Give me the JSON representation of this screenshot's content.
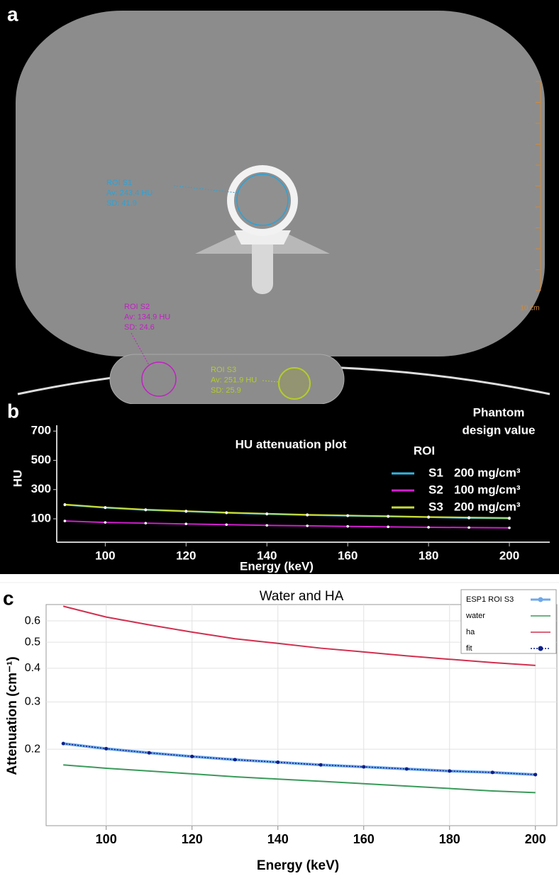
{
  "panel_labels": [
    "a",
    "b",
    "c"
  ],
  "ct_image": {
    "rois": [
      {
        "name": "ROI S1",
        "mean": "Av: 243.4 HU",
        "sd": "SD: 41.9",
        "color": "#2aa3d8"
      },
      {
        "name": "ROI S2",
        "mean": "Av: 134.9 HU",
        "sd": "SD: 24.6",
        "color": "#c21fc4"
      },
      {
        "name": "ROI S3",
        "mean": "Av: 251.9 HU",
        "sd": "SD: 25.9",
        "color": "#b5cc2a"
      }
    ],
    "scale_label": "10 cm"
  },
  "chart_data": [
    {
      "type": "line",
      "title": "HU attenuation plot",
      "x_label": "Energy (keV)",
      "y_label": "HU",
      "x": [
        90,
        100,
        110,
        120,
        130,
        140,
        150,
        160,
        170,
        180,
        190,
        200
      ],
      "xlim": [
        88,
        210
      ],
      "xticks": [
        100,
        120,
        140,
        160,
        180,
        200
      ],
      "ylim": [
        -60,
        740
      ],
      "yticks": [
        100,
        300,
        500,
        700
      ],
      "grid": false,
      "legend_title": "ROI",
      "design_value_title": [
        "Phantom",
        "design value"
      ],
      "series": [
        {
          "name": "S1",
          "color": "#33b5e0",
          "design_value": "200 mg/cm³",
          "marker": true,
          "values": [
            195,
            175,
            160,
            150,
            140,
            132,
            125,
            120,
            115,
            110,
            105,
            102
          ]
        },
        {
          "name": "S2",
          "color": "#d21fd0",
          "design_value": "100 mg/cm³",
          "marker": true,
          "values": [
            85,
            75,
            70,
            65,
            60,
            55,
            52,
            48,
            45,
            42,
            40,
            38
          ]
        },
        {
          "name": "S3",
          "color": "#c6dc3a",
          "design_value": "200 mg/cm³",
          "marker": true,
          "values": [
            198,
            178,
            163,
            153,
            143,
            135,
            128,
            123,
            118,
            113,
            109,
            106
          ]
        }
      ]
    },
    {
      "type": "line",
      "title": "Water and HA",
      "x_label": "Energy (keV)",
      "y_label": "Attenuation (cm⁻¹)",
      "log_y": true,
      "x": [
        90,
        100,
        110,
        120,
        130,
        140,
        150,
        160,
        170,
        180,
        190,
        200
      ],
      "xlim": [
        86,
        205
      ],
      "xticks": [
        100,
        120,
        140,
        160,
        180,
        200
      ],
      "ylim": [
        0.104,
        0.69
      ],
      "yticks": [
        0.2,
        0.3,
        0.4,
        0.5,
        0.6
      ],
      "grid": true,
      "series": [
        {
          "name": "ESP1 ROI S3",
          "color": "#6fa8e8",
          "marker": false,
          "values": [
            0.21,
            0.201,
            0.194,
            0.188,
            0.183,
            0.179,
            0.175,
            0.172,
            0.169,
            0.166,
            0.164,
            0.161
          ]
        },
        {
          "name": "water",
          "color": "#3a9a5a",
          "marker": false,
          "values": [
            0.175,
            0.17,
            0.166,
            0.162,
            0.158,
            0.155,
            0.152,
            0.149,
            0.146,
            0.143,
            0.14,
            0.138
          ]
        },
        {
          "name": "ha",
          "color": "#d0304f",
          "marker": false,
          "values": [
            0.68,
            0.62,
            0.58,
            0.545,
            0.515,
            0.495,
            0.475,
            0.46,
            0.445,
            0.432,
            0.42,
            0.41
          ]
        },
        {
          "name": "fit",
          "color": "#0b1f8a",
          "marker": true,
          "line_style": "dotted",
          "values": [
            0.21,
            0.201,
            0.194,
            0.188,
            0.183,
            0.179,
            0.175,
            0.172,
            0.169,
            0.166,
            0.164,
            0.161
          ]
        }
      ]
    }
  ]
}
